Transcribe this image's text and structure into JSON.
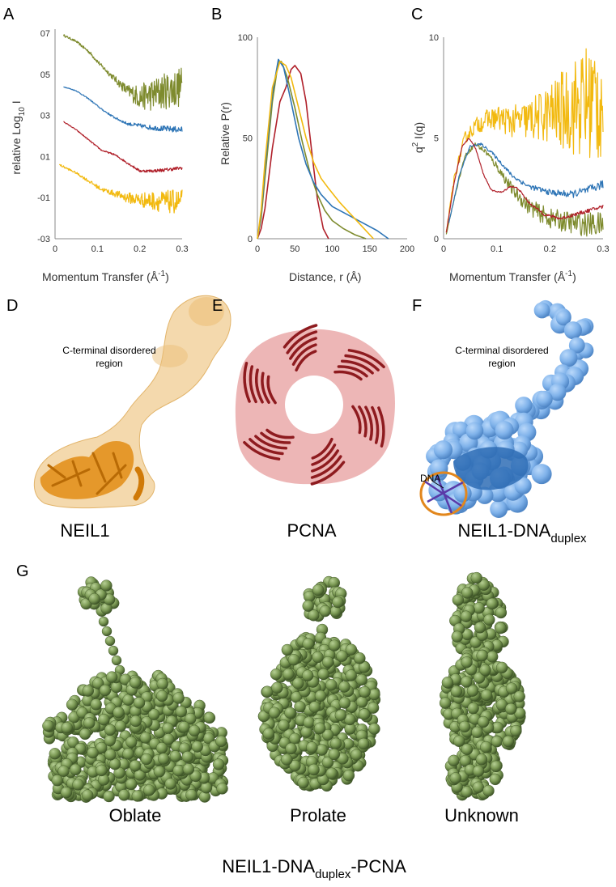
{
  "panel_labels": {
    "a": "A",
    "b": "B",
    "c": "C",
    "d": "D",
    "e": "E",
    "f": "F",
    "g": "G"
  },
  "colors": {
    "olive": "#7e8b2e",
    "blue": "#2e75b6",
    "red": "#b0202a",
    "gold": "#f2b90f",
    "green_model": "#7c9a55",
    "tan": "#f0c98a",
    "pink": "#eaa9a9",
    "sky": "#7fb2ea"
  },
  "chart_data": [
    {
      "id": "A",
      "type": "line",
      "xlabel_main": "Momentum Transfer (Å",
      "xlabel_sup": "-1",
      "xlabel_end": ")",
      "ylabel_main": "relative Log",
      "ylabel_sub": "10",
      "ylabel_end": " I",
      "x_ticks": [
        "0",
        "0.1",
        "0.2",
        "0.3"
      ],
      "y_ticks": [
        "07",
        "05",
        "03",
        "01",
        "-01",
        "-03"
      ],
      "xlim": [
        0,
        0.3
      ],
      "ylim": [
        -3,
        7.2
      ],
      "series": [
        {
          "color": "#7e8b2e",
          "x": [
            0.02,
            0.05,
            0.08,
            0.11,
            0.14,
            0.17,
            0.2,
            0.23,
            0.26,
            0.3
          ],
          "y": [
            6.9,
            6.6,
            6.1,
            5.4,
            4.8,
            4.2,
            3.9,
            4.0,
            4.2,
            4.4
          ],
          "noise": [
            0.05,
            0.05,
            0.08,
            0.1,
            0.15,
            0.3,
            0.6,
            0.8,
            0.9,
            1.0
          ]
        },
        {
          "color": "#2e75b6",
          "x": [
            0.02,
            0.05,
            0.08,
            0.11,
            0.14,
            0.17,
            0.2,
            0.23,
            0.26,
            0.3
          ],
          "y": [
            4.4,
            4.2,
            3.8,
            3.3,
            2.9,
            2.6,
            2.5,
            2.4,
            2.35,
            2.3
          ],
          "noise": [
            0.02,
            0.02,
            0.03,
            0.04,
            0.05,
            0.07,
            0.1,
            0.12,
            0.14,
            0.15
          ]
        },
        {
          "color": "#b0202a",
          "x": [
            0.02,
            0.05,
            0.08,
            0.11,
            0.14,
            0.17,
            0.2,
            0.23,
            0.26,
            0.3
          ],
          "y": [
            2.7,
            2.3,
            1.8,
            1.3,
            1.1,
            0.7,
            0.3,
            0.3,
            0.35,
            0.45
          ],
          "noise": [
            0.02,
            0.02,
            0.03,
            0.03,
            0.04,
            0.05,
            0.06,
            0.07,
            0.08,
            0.08
          ]
        },
        {
          "color": "#f2b90f",
          "x": [
            0.01,
            0.05,
            0.08,
            0.11,
            0.14,
            0.17,
            0.2,
            0.23,
            0.26,
            0.3
          ],
          "y": [
            0.6,
            0.2,
            -0.2,
            -0.6,
            -0.8,
            -1.0,
            -1.1,
            -1.15,
            -1.2,
            -1.2
          ],
          "noise": [
            0.05,
            0.05,
            0.08,
            0.1,
            0.15,
            0.25,
            0.35,
            0.45,
            0.55,
            0.6
          ]
        }
      ]
    },
    {
      "id": "B",
      "type": "line",
      "xlabel": "Distance, r (Å)",
      "ylabel": "Relative P(r)",
      "x_ticks": [
        "0",
        "50",
        "100",
        "150",
        "200"
      ],
      "y_ticks": [
        "100",
        "50",
        "0"
      ],
      "xlim": [
        0,
        200
      ],
      "ylim": [
        0,
        100
      ],
      "series": [
        {
          "color": "#b0202a",
          "x": [
            0,
            5,
            10,
            20,
            30,
            38,
            45,
            50,
            58,
            65,
            72,
            80,
            88,
            95
          ],
          "y": [
            0,
            5,
            15,
            45,
            68,
            75,
            84,
            86,
            82,
            68,
            45,
            20,
            5,
            0
          ]
        },
        {
          "color": "#7e8b2e",
          "x": [
            0,
            5,
            10,
            20,
            28,
            32,
            40,
            50,
            60,
            70,
            80,
            90,
            100,
            115,
            130,
            145
          ],
          "y": [
            0,
            10,
            30,
            68,
            88,
            88,
            80,
            65,
            48,
            33,
            22,
            14,
            9,
            5,
            2,
            0
          ]
        },
        {
          "color": "#2e75b6",
          "x": [
            0,
            5,
            10,
            20,
            28,
            35,
            45,
            55,
            65,
            75,
            85,
            100,
            120,
            140,
            160,
            175
          ],
          "y": [
            0,
            12,
            35,
            72,
            89,
            85,
            68,
            50,
            37,
            28,
            22,
            16,
            12,
            8,
            4,
            0
          ]
        },
        {
          "color": "#f2b90f",
          "x": [
            0,
            5,
            10,
            20,
            30,
            38,
            45,
            55,
            65,
            75,
            85,
            95,
            110,
            125,
            140,
            155
          ],
          "y": [
            0,
            14,
            38,
            75,
            88,
            86,
            80,
            65,
            50,
            38,
            30,
            25,
            18,
            12,
            6,
            0
          ]
        }
      ]
    },
    {
      "id": "C",
      "type": "line",
      "xlabel_main": "Momentum Transfer (Å",
      "xlabel_sup": "-1",
      "xlabel_end": ")",
      "ylabel_main": "q",
      "ylabel_sup": "2",
      "ylabel_end": " I(q)",
      "x_ticks": [
        "0",
        "0.1",
        "0.2",
        "0.3"
      ],
      "y_ticks": [
        "10",
        "5",
        "0"
      ],
      "xlim": [
        0,
        0.3
      ],
      "ylim": [
        0,
        10
      ],
      "series": [
        {
          "color": "#f2b90f",
          "x": [
            0.005,
            0.02,
            0.04,
            0.06,
            0.08,
            0.1,
            0.13,
            0.16,
            0.2,
            0.24,
            0.27,
            0.3
          ],
          "y": [
            0.3,
            3.0,
            5.0,
            5.6,
            5.9,
            6.0,
            5.8,
            5.9,
            6.2,
            6.5,
            6.8,
            7.0
          ],
          "noise": [
            0.05,
            0.2,
            0.3,
            0.4,
            0.5,
            0.6,
            0.8,
            1.0,
            1.5,
            2.3,
            3.0,
            3.5
          ]
        },
        {
          "color": "#7e8b2e",
          "x": [
            0.005,
            0.02,
            0.04,
            0.06,
            0.08,
            0.1,
            0.13,
            0.16,
            0.2,
            0.24,
            0.27,
            0.3
          ],
          "y": [
            0.2,
            2.0,
            4.1,
            4.7,
            4.3,
            3.6,
            2.4,
            1.6,
            1.0,
            0.8,
            0.7,
            0.7
          ],
          "noise": [
            0.02,
            0.05,
            0.08,
            0.1,
            0.15,
            0.2,
            0.3,
            0.4,
            0.5,
            0.55,
            0.6,
            0.65
          ]
        },
        {
          "color": "#2e75b6",
          "x": [
            0.01,
            0.03,
            0.05,
            0.07,
            0.09,
            0.11,
            0.13,
            0.16,
            0.2,
            0.24,
            0.27,
            0.3
          ],
          "y": [
            0.8,
            3.2,
            4.6,
            4.7,
            4.3,
            3.7,
            3.1,
            2.6,
            2.3,
            2.2,
            2.4,
            2.7
          ],
          "noise": [
            0.02,
            0.03,
            0.05,
            0.06,
            0.07,
            0.08,
            0.1,
            0.12,
            0.15,
            0.18,
            0.2,
            0.22
          ]
        },
        {
          "color": "#b0202a",
          "x": [
            0.005,
            0.02,
            0.035,
            0.048,
            0.06,
            0.075,
            0.09,
            0.11,
            0.125,
            0.14,
            0.16,
            0.19,
            0.22,
            0.26,
            0.3
          ],
          "y": [
            0.3,
            2.8,
            4.6,
            5.0,
            4.5,
            3.2,
            2.4,
            2.3,
            2.6,
            2.5,
            1.8,
            1.2,
            1.0,
            1.3,
            1.6
          ],
          "noise": [
            0.01,
            0.02,
            0.03,
            0.03,
            0.03,
            0.03,
            0.03,
            0.04,
            0.04,
            0.05,
            0.06,
            0.07,
            0.08,
            0.09,
            0.1
          ]
        }
      ]
    }
  ],
  "panel_d": {
    "annotation_line1": "C-terminal disordered",
    "annotation_line2": "region",
    "caption": "NEIL1"
  },
  "panel_e": {
    "caption": "PCNA"
  },
  "panel_f": {
    "annotation_line1": "C-terminal disordered",
    "annotation_line2": "region",
    "dna_label": "DNA",
    "caption_main": "NEIL1-DNA",
    "caption_sub": "duplex"
  },
  "panel_g": {
    "models": [
      {
        "shape": "oblate",
        "label": "Oblate"
      },
      {
        "shape": "prolate",
        "label": "Prolate"
      },
      {
        "shape": "unknown",
        "label": "Unknown"
      }
    ],
    "caption_main": "NEIL1-DNA",
    "caption_sub": "duplex",
    "caption_end": "-PCNA"
  }
}
